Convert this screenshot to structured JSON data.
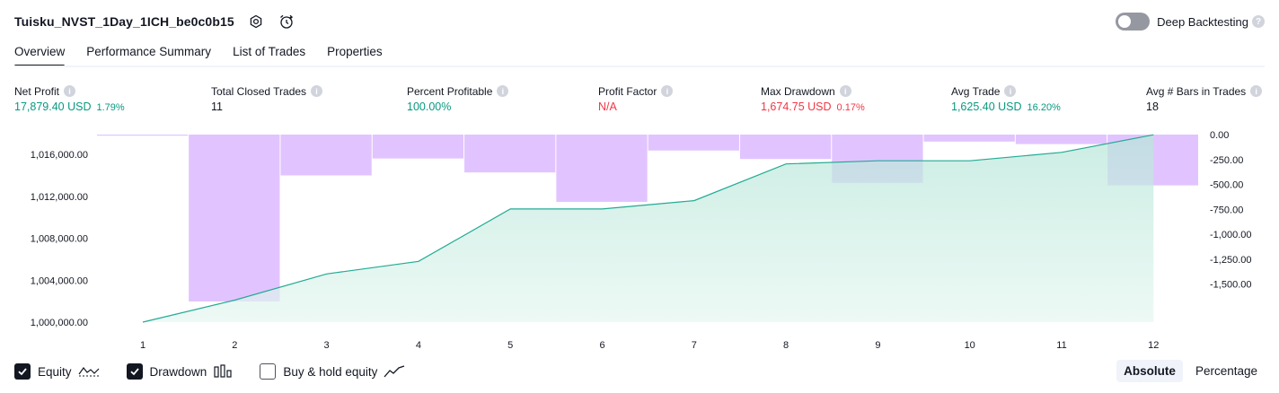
{
  "header": {
    "title": "Tuisku_NVST_1Day_1ICH_be0c0b15",
    "icons": [
      "settings-icon",
      "alarm-clock-icon"
    ]
  },
  "deep_backtesting": {
    "label": "Deep Backtesting",
    "enabled": false
  },
  "tabs": [
    {
      "label": "Overview",
      "active": true
    },
    {
      "label": "Performance Summary",
      "active": false
    },
    {
      "label": "List of Trades",
      "active": false
    },
    {
      "label": "Properties",
      "active": false
    }
  ],
  "metrics": {
    "net_profit": {
      "label": "Net Profit",
      "value": "17,879.40 USD",
      "sub": "1.79%"
    },
    "total_closed_trades": {
      "label": "Total Closed Trades",
      "value": "11"
    },
    "percent_profitable": {
      "label": "Percent Profitable",
      "value": "100.00%"
    },
    "profit_factor": {
      "label": "Profit Factor",
      "value": "N/A"
    },
    "max_drawdown": {
      "label": "Max Drawdown",
      "value": "1,674.75 USD",
      "sub": "0.17%"
    },
    "avg_trade": {
      "label": "Avg Trade",
      "value": "1,625.40 USD",
      "sub": "16.20%"
    },
    "avg_bars": {
      "label": "Avg # Bars in Trades",
      "value": "18"
    }
  },
  "colors": {
    "green": "#089981",
    "red": "#f23645",
    "drawdown": "#e1c4ff",
    "equity_line": "#22ab94",
    "equity_fill": "#c8ece3"
  },
  "chart_data": {
    "type": "area",
    "x": [
      1,
      2,
      3,
      4,
      5,
      6,
      7,
      8,
      9,
      10,
      11,
      12
    ],
    "left_axis": {
      "ticks": [
        1000000,
        1004000,
        1008000,
        1012000,
        1016000
      ],
      "tick_labels": [
        "1,000,000.00",
        "1,004,000.00",
        "1,008,000.00",
        "1,012,000.00",
        "1,016,000.00"
      ],
      "ylim": [
        1000000,
        1017900
      ]
    },
    "right_axis": {
      "ticks": [
        0,
        -250,
        -500,
        -750,
        -1000,
        -1250,
        -1500
      ],
      "tick_labels": [
        "0.00",
        "-250.00",
        "-500.00",
        "-750.00",
        "-1,000.00",
        "-1,250.00",
        "-1,500.00"
      ],
      "ylim": [
        -1675,
        0
      ]
    },
    "series": [
      {
        "name": "Equity",
        "axis": "left",
        "values": [
          1000000,
          1002100,
          1004600,
          1005800,
          1010800,
          1010800,
          1011600,
          1015100,
          1015400,
          1015400,
          1016200,
          1017880
        ]
      },
      {
        "name": "Drawdown",
        "axis": "right",
        "values": [
          0,
          -1675,
          -410,
          -240,
          -380,
          -675,
          -160,
          -245,
          -485,
          -70,
          -95,
          -510
        ]
      }
    ],
    "grid": false
  },
  "legend": [
    {
      "label": "Equity",
      "checked": true,
      "icon": "equity-line-icon"
    },
    {
      "label": "Drawdown",
      "checked": true,
      "icon": "drawdown-bars-icon"
    },
    {
      "label": "Buy & hold equity",
      "checked": false,
      "icon": "buy-hold-line-icon"
    }
  ],
  "modes": [
    {
      "label": "Absolute",
      "active": true
    },
    {
      "label": "Percentage",
      "active": false
    }
  ]
}
